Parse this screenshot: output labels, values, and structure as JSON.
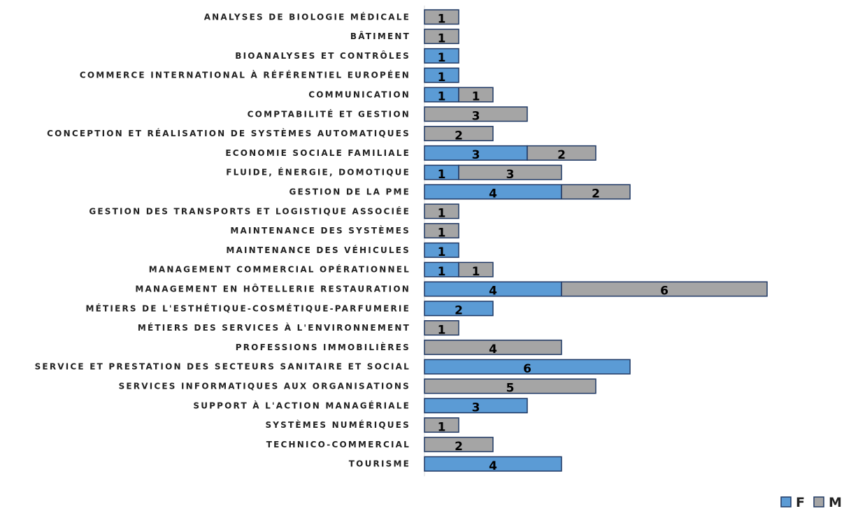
{
  "chart_data": {
    "type": "bar",
    "orientation": "horizontal",
    "stacked": true,
    "categories": [
      "ANALYSES DE BIOLOGIE MÉDICALE",
      "BÂTIMENT",
      "BIOANALYSES ET CONTRÔLES",
      "COMMERCE INTERNATIONAL À RÉFÉRENTIEL EUROPÉEN",
      "COMMUNICATION",
      "COMPTABILITÉ ET GESTION",
      "CONCEPTION ET RÉALISATION DE SYSTÈMES AUTOMATIQUES",
      "ECONOMIE SOCIALE FAMILIALE",
      "FLUIDE, ÉNERGIE, DOMOTIQUE ",
      "GESTION DE LA PME",
      "GESTION DES TRANSPORTS ET LOGISTIQUE ASSOCIÉE",
      "MAINTENANCE DES SYSTÈMES ",
      "MAINTENANCE DES VÉHICULES",
      "MANAGEMENT COMMERCIAL OPÉRATIONNEL",
      "MANAGEMENT EN HÔTELLERIE RESTAURATION",
      "MÉTIERS DE L'ESTHÉTIQUE-COSMÉTIQUE-PARFUMERIE",
      "MÉTIERS DES SERVICES À L'ENVIRONNEMENT",
      "PROFESSIONS IMMOBILIÈRES",
      "SERVICE ET PRESTATION DES SECTEURS SANITAIRE ET SOCIAL",
      "SERVICES INFORMATIQUES AUX ORGANISATIONS",
      "SUPPORT À L'ACTION MANAGÉRIALE",
      "SYSTÈMES NUMÉRIQUES",
      "TECHNICO-COMMERCIAL ",
      "TOURISME"
    ],
    "series": [
      {
        "name": "F",
        "color": "#5B9BD5",
        "values": [
          0,
          0,
          1,
          1,
          1,
          0,
          0,
          3,
          1,
          4,
          0,
          0,
          1,
          1,
          4,
          2,
          0,
          0,
          6,
          0,
          3,
          0,
          0,
          4
        ]
      },
      {
        "name": "M",
        "color": "#A5A5A5",
        "values": [
          1,
          1,
          0,
          0,
          1,
          3,
          2,
          2,
          3,
          2,
          1,
          1,
          0,
          1,
          6,
          0,
          1,
          4,
          0,
          5,
          0,
          1,
          2,
          0
        ]
      }
    ],
    "xlim": [
      0,
      10
    ],
    "legend_position": "bottom-right",
    "grid": false,
    "bar_outline_color": "#1F3864"
  }
}
